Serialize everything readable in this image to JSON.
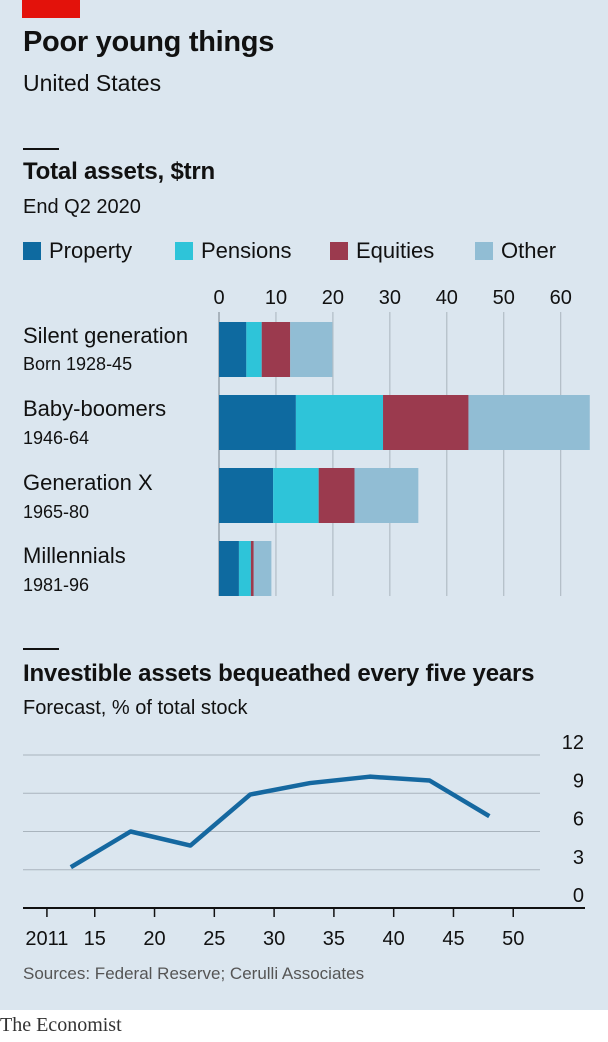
{
  "header": {
    "title": "Poor young things",
    "subtitle": "United States"
  },
  "colors": {
    "property": "#0e6aa0",
    "pensions": "#2ec4d9",
    "equities": "#9b3a4e",
    "other": "#91bdd4",
    "line": "#1568a0",
    "grid": "#a9b4bd",
    "brand_red": "#e3120b"
  },
  "chart_data": [
    {
      "type": "bar",
      "orientation": "horizontal",
      "stacked": true,
      "title": "Total assets, $trn",
      "subtitle": "End Q2 2020",
      "categories": [
        "Silent generation",
        "Baby-boomers",
        "Generation X",
        "Millennials"
      ],
      "category_sublabels": [
        "Born 1928-45",
        "1946-64",
        "1965-80",
        "1981-96"
      ],
      "series": [
        {
          "name": "Property",
          "values": [
            4.8,
            13.5,
            9.5,
            3.5
          ]
        },
        {
          "name": "Pensions",
          "values": [
            2.7,
            15.3,
            8.0,
            2.1
          ]
        },
        {
          "name": "Equities",
          "values": [
            5.0,
            15.0,
            6.3,
            0.5
          ]
        },
        {
          "name": "Other",
          "values": [
            7.4,
            21.3,
            11.2,
            3.1
          ]
        }
      ],
      "xlim": [
        0,
        65
      ],
      "xticks": [
        0,
        10,
        20,
        30,
        40,
        50,
        60
      ],
      "legend_position": "top",
      "grid": "vertical"
    },
    {
      "type": "line",
      "title": "Investible assets bequeathed every five years",
      "subtitle": "Forecast, % of total stock",
      "x": [
        2013,
        2018,
        2023,
        2028,
        2033,
        2038,
        2043,
        2048
      ],
      "series": [
        {
          "name": "",
          "values": [
            3.2,
            6.0,
            4.9,
            8.9,
            9.8,
            10.3,
            10.0,
            7.2
          ]
        }
      ],
      "xlim": [
        2009,
        2056
      ],
      "xticks": [
        2011,
        2015,
        2020,
        2025,
        2030,
        2035,
        2040,
        2045,
        2050
      ],
      "xtick_labels": [
        "2011",
        "15",
        "20",
        "25",
        "30",
        "35",
        "40",
        "45",
        "50"
      ],
      "ylim": [
        0,
        12
      ],
      "yticks": [
        0,
        3,
        6,
        9,
        12
      ],
      "grid": "horizontal",
      "y_axis_position": "right"
    }
  ],
  "footer": {
    "source": "Sources: Federal Reserve; Cerulli Associates",
    "brand": "The Economist"
  }
}
